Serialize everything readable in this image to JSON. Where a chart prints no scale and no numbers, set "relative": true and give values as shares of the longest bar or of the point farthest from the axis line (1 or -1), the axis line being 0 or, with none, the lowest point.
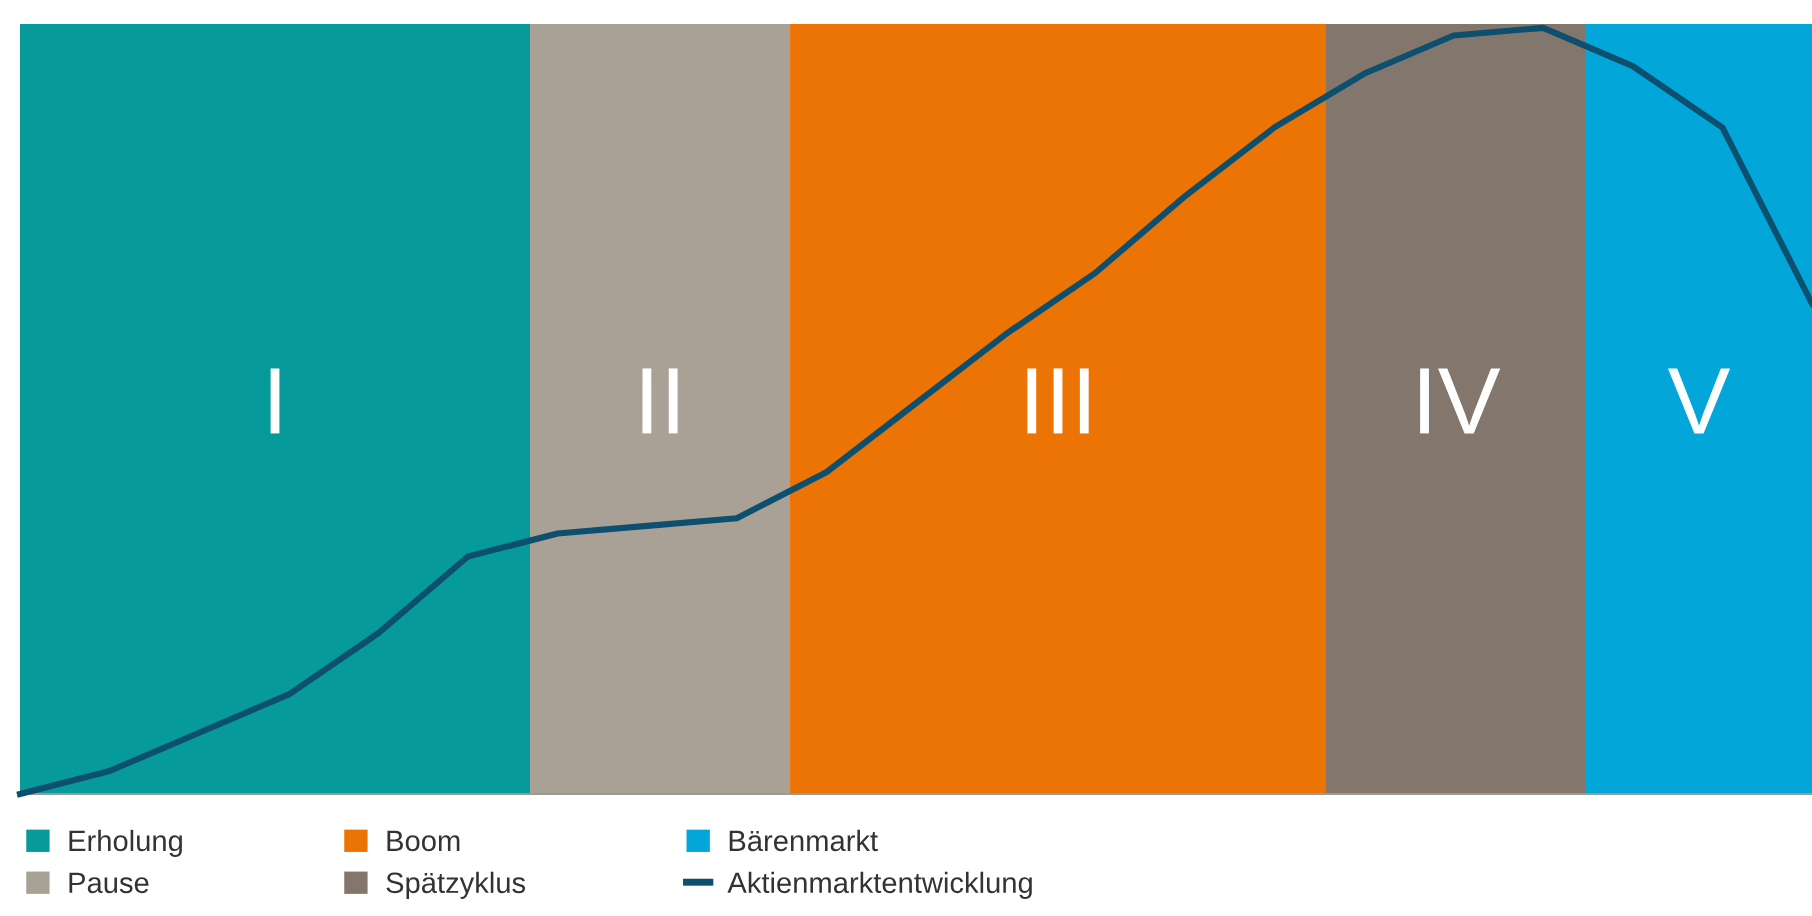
{
  "chart_data": {
    "type": "line",
    "relative": true,
    "categories": [
      null,
      null,
      null,
      null,
      null,
      null,
      null,
      null,
      null,
      null,
      null,
      null,
      null,
      null,
      null,
      null,
      null,
      null,
      null,
      null,
      null
    ],
    "series": [
      {
        "name": "Aktienmarktentwicklung",
        "color": "#0d4f6e",
        "values": [
          0,
          0.03,
          0.08,
          0.13,
          0.21,
          0.31,
          0.34,
          0.35,
          0.36,
          0.42,
          0.51,
          0.6,
          0.68,
          0.78,
          0.87,
          0.94,
          0.99,
          1.0,
          0.95,
          0.87,
          0.64
        ]
      }
    ],
    "annotations": [
      "I",
      "II",
      "III",
      "IV",
      "V",
      "Erholung",
      "Pause",
      "Boom",
      "Spätzyklus",
      "Bärenmarkt"
    ],
    "legend": "bottom",
    "marker": "none",
    "line_style": "solid",
    "tick_labels": false
  }
}
